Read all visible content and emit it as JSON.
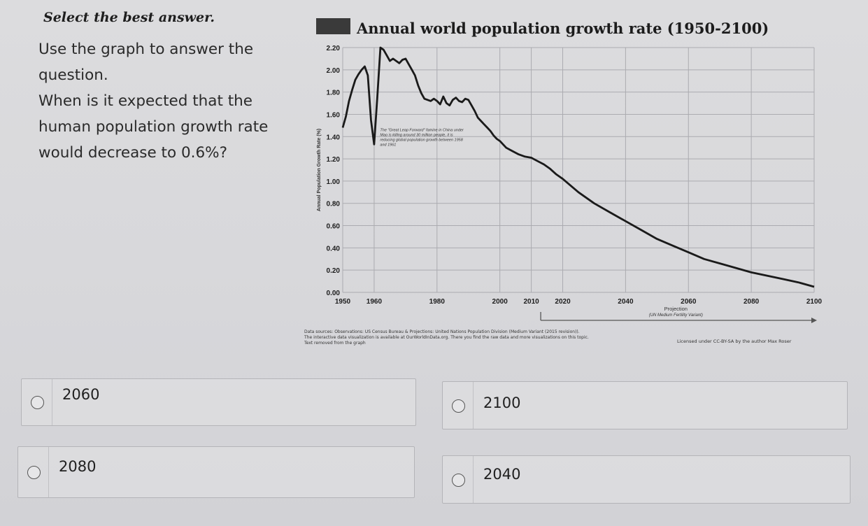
{
  "prompt": {
    "instruction": "Select the best answer.",
    "question_lines": [
      "Use the graph to answer the",
      "question.",
      "When is it expected that the",
      "human population growth rate",
      "would decrease to 0.6%?"
    ]
  },
  "chart_data": {
    "type": "line",
    "title": "Annual world population growth rate (1950-2100)",
    "ylabel": "Annual Population Growth Rate (%)",
    "xlabel": "",
    "x_ticks": [
      "1950",
      "1960",
      "1980",
      "2000",
      "2010",
      "2020",
      "2040",
      "2060",
      "2080",
      "2100"
    ],
    "y_ticks": [
      "0.00",
      "0.20",
      "0.40",
      "0.60",
      "0.80",
      "1.00",
      "1.20",
      "1.40",
      "1.60",
      "1.80",
      "2.00",
      "2.20"
    ],
    "xlim": [
      1950,
      2100
    ],
    "ylim": [
      0,
      2.2
    ],
    "grid": true,
    "x": [
      1950,
      1951,
      1952,
      1953,
      1954,
      1955,
      1956,
      1957,
      1958,
      1959,
      1960,
      1961,
      1962,
      1963,
      1964,
      1965,
      1966,
      1967,
      1968,
      1969,
      1970,
      1971,
      1972,
      1973,
      1974,
      1975,
      1976,
      1977,
      1978,
      1979,
      1980,
      1981,
      1982,
      1983,
      1984,
      1985,
      1986,
      1987,
      1988,
      1989,
      1990,
      1991,
      1992,
      1993,
      1994,
      1995,
      1996,
      1997,
      1998,
      1999,
      2000,
      2002,
      2004,
      2006,
      2008,
      2010,
      2012,
      2014,
      2016,
      2018,
      2020,
      2025,
      2030,
      2035,
      2040,
      2045,
      2050,
      2055,
      2060,
      2065,
      2070,
      2075,
      2080,
      2085,
      2090,
      2095,
      2100
    ],
    "values": [
      1.48,
      1.58,
      1.72,
      1.82,
      1.91,
      1.96,
      2.0,
      2.03,
      1.95,
      1.55,
      1.33,
      1.75,
      2.2,
      2.18,
      2.13,
      2.08,
      2.1,
      2.08,
      2.06,
      2.09,
      2.1,
      2.05,
      2.0,
      1.95,
      1.86,
      1.79,
      1.74,
      1.73,
      1.72,
      1.74,
      1.72,
      1.69,
      1.76,
      1.7,
      1.68,
      1.73,
      1.75,
      1.72,
      1.71,
      1.74,
      1.73,
      1.68,
      1.63,
      1.57,
      1.54,
      1.51,
      1.48,
      1.45,
      1.41,
      1.38,
      1.36,
      1.3,
      1.27,
      1.24,
      1.22,
      1.21,
      1.18,
      1.15,
      1.11,
      1.06,
      1.02,
      0.9,
      0.8,
      0.72,
      0.64,
      0.56,
      0.48,
      0.42,
      0.36,
      0.3,
      0.26,
      0.22,
      0.18,
      0.15,
      0.12,
      0.09,
      0.05
    ],
    "annotation": "The \"Great Leap Forward\" famine in China under Mao is killing around 30 million people, it is reducing global population growth between 1958 and 1961",
    "projection_label": "Projection",
    "projection_sub": "(UN Medium Fertility Variant)",
    "source_lines": [
      "Data sources: Observations: US Census Bureau & Projections: United Nations Population Division (Medium Variant (2015 revision)).",
      "The interactive data visualization is available at OurWorldInData.org. There you find the raw data and more visualizations on this topic.",
      "Text removed from the graph"
    ],
    "license": "Licensed under CC-BY-SA by the author Max Roser",
    "colors": {
      "line": "#1a1a1a",
      "grid": "#ababb0",
      "axis_text": "#1c1c1c"
    }
  },
  "options": [
    {
      "label": "2060"
    },
    {
      "label": "2100"
    },
    {
      "label": "2080"
    },
    {
      "label": "2040"
    }
  ]
}
